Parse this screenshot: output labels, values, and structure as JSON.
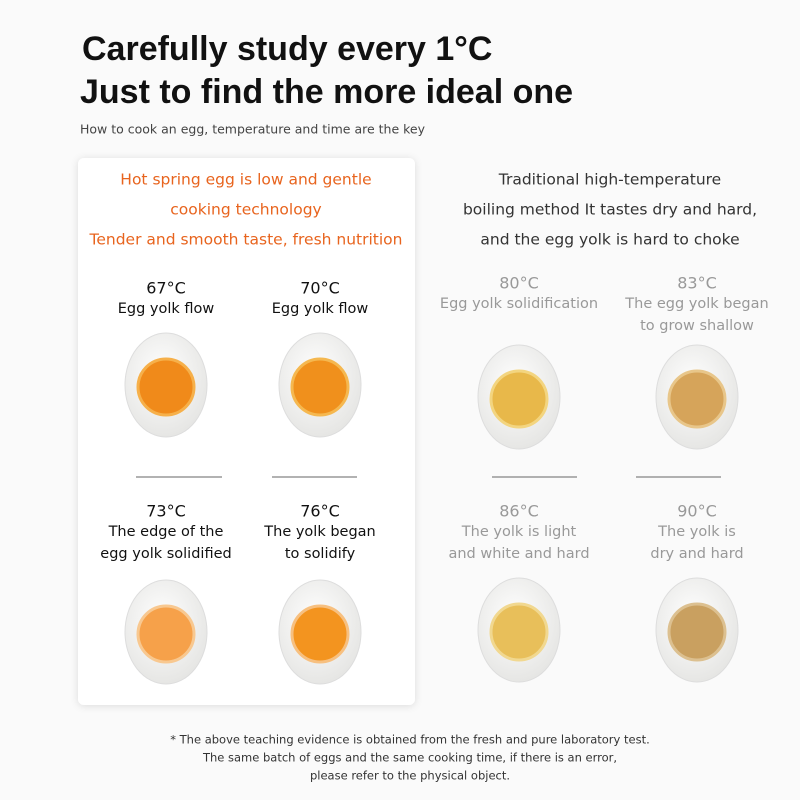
{
  "header": {
    "title": [
      "Carefully study every 1°C",
      "Just to find the more ideal one"
    ],
    "subtitle": "How to cook an egg, temperature and time are the key"
  },
  "left_panel": {
    "heading": [
      "Hot spring egg is low and gentle",
      "cooking technology",
      "Tender and smooth taste, fresh nutrition"
    ],
    "eggs": [
      {
        "temperature": "67°C",
        "label": [
          "Egg yolk flow"
        ]
      },
      {
        "temperature": "70°C",
        "label": [
          "Egg yolk flow"
        ]
      },
      {
        "temperature": "73°C",
        "label": [
          "The edge of the",
          "egg yolk solidified"
        ]
      },
      {
        "temperature": "76°C",
        "label": [
          "The yolk began",
          "to solidify"
        ]
      }
    ]
  },
  "right_panel": {
    "heading": [
      "Traditional high-temperature",
      "boiling method It tastes dry and hard,",
      "and the egg yolk is hard to choke"
    ],
    "eggs": [
      {
        "temperature": "80°C",
        "label": [
          "Egg yolk solidification"
        ]
      },
      {
        "temperature": "83°C",
        "label": [
          "The egg yolk began",
          "to grow shallow"
        ]
      },
      {
        "temperature": "86°C",
        "label": [
          "The yolk is light",
          "and white and hard"
        ]
      },
      {
        "temperature": "90°C",
        "label": [
          "The yolk is",
          "dry and hard"
        ]
      }
    ]
  },
  "footnote": [
    "* The above teaching evidence is obtained from the fresh and pure laboratory test.",
    "The same batch of eggs and the same cooking time, if there is an error,",
    "please refer to the physical object."
  ]
}
